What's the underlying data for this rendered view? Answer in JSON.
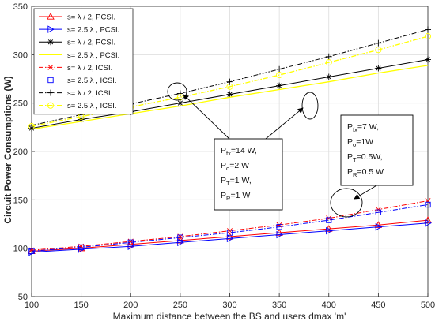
{
  "chart_data": {
    "type": "line",
    "xlabel": "Maximum distance between the BS and users dmax 'm'",
    "ylabel": "Circuit Power Consumptions (W)",
    "xlim": [
      100,
      500
    ],
    "ylim": [
      50,
      350
    ],
    "xticks": [
      100,
      150,
      200,
      250,
      300,
      350,
      400,
      450,
      500
    ],
    "yticks": [
      50,
      100,
      150,
      200,
      250,
      300,
      350
    ],
    "grid": true,
    "legend_position": "top-left",
    "x": [
      100,
      150,
      200,
      250,
      300,
      350,
      400,
      450,
      500
    ],
    "series": [
      {
        "name": "s= λ / 2, PCSI.",
        "color": "#ff0000",
        "dash": "solid",
        "marker": "triangle-up",
        "values": [
          97,
          100,
          104,
          108,
          112,
          116,
          120,
          124,
          129
        ]
      },
      {
        "name": "s= 2.5 λ , PCSI.",
        "color": "#0000ff",
        "dash": "solid",
        "marker": "triangle-right",
        "values": [
          96,
          99,
          102,
          106,
          110,
          114,
          118,
          122,
          126
        ]
      },
      {
        "name": "s= λ / 2, PCSI.",
        "color": "#000000",
        "dash": "solid",
        "marker": "asterisk",
        "values": [
          224,
          233,
          241,
          250,
          259,
          268,
          277,
          286,
          295
        ]
      },
      {
        "name": "s= 2.5 λ , PCSI.",
        "color": "#ffff00",
        "dash": "solid",
        "marker": "none",
        "values": [
          223,
          231,
          239,
          247,
          256,
          264,
          272,
          281,
          289
        ]
      },
      {
        "name": "s= λ / 2, ICSI.",
        "color": "#ff0000",
        "dash": "dashdot",
        "marker": "x",
        "values": [
          98,
          102,
          107,
          112,
          118,
          124,
          131,
          140,
          149
        ]
      },
      {
        "name": "s= 2.5 λ , ICSI.",
        "color": "#0000ff",
        "dash": "dashdot",
        "marker": "square",
        "values": [
          97,
          101,
          106,
          111,
          116,
          122,
          129,
          137,
          145
        ]
      },
      {
        "name": "s= λ / 2, ICSI.",
        "color": "#000000",
        "dash": "dashdot",
        "marker": "plus",
        "values": [
          227,
          238,
          249,
          260,
          272,
          285,
          298,
          312,
          326
        ]
      },
      {
        "name": "s= 2.5 λ , ICSI.",
        "color": "#ffff00",
        "dash": "dashdot",
        "marker": "circle",
        "values": [
          226,
          236,
          246,
          256,
          267,
          279,
          292,
          305,
          319
        ]
      }
    ],
    "annotations": [
      {
        "lines": [
          {
            "main": "P",
            "sub": "fx",
            "rest": "=14 W,"
          },
          {
            "main": "P",
            "sub": "o",
            "rest": "=2 W"
          },
          {
            "main": "P",
            "sub": "T",
            "rest": "=1 W,"
          },
          {
            "main": "P",
            "sub": "R",
            "rest": "=1 W"
          }
        ]
      },
      {
        "lines": [
          {
            "main": "P",
            "sub": "fx",
            "rest": "=7 W,"
          },
          {
            "main": "P",
            "sub": "o",
            "rest": "=1W"
          },
          {
            "main": "P",
            "sub": "T",
            "rest": "=0.5W,"
          },
          {
            "main": "P",
            "sub": "R",
            "rest": "=0.5 W"
          }
        ]
      }
    ]
  }
}
